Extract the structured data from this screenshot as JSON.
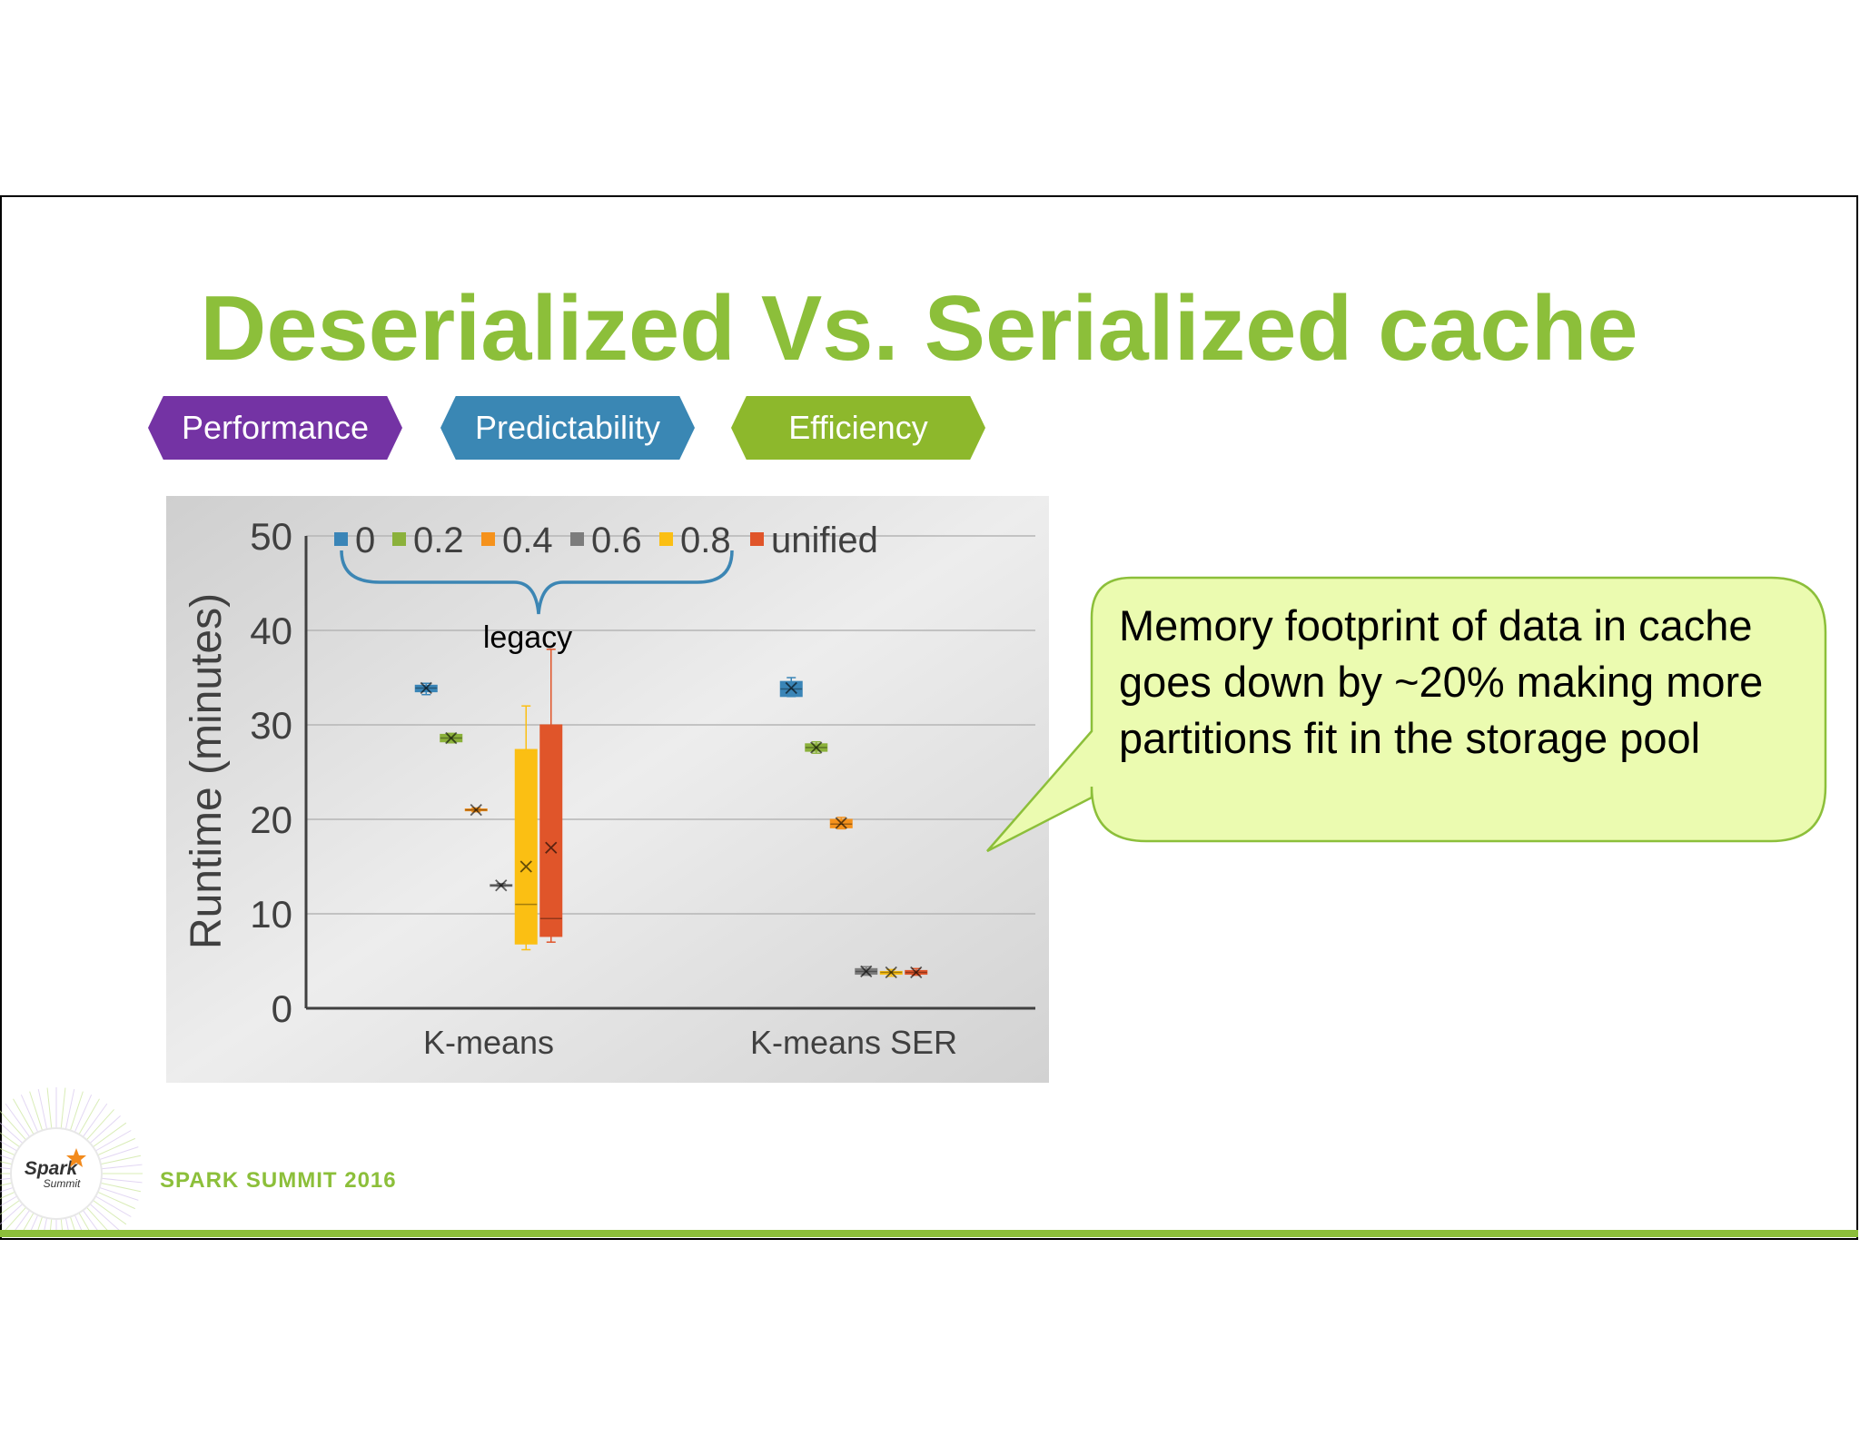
{
  "slide": {
    "title": "Deserialized Vs. Serialized cache",
    "tags": [
      {
        "label": "Performance",
        "color": "#7433a4"
      },
      {
        "label": "Predictability",
        "color": "#3a87b4"
      },
      {
        "label": "Efficiency",
        "color": "#8db82c"
      }
    ],
    "callout": "Memory footprint of data in cache goes down by ~20% making more partitions fit in the storage pool",
    "footer": "SPARK SUMMIT 2016",
    "logo_text": {
      "line1": "Spark",
      "line2": "Summit"
    }
  },
  "chart_data": {
    "type": "box",
    "ylabel": "Runtime (minutes)",
    "ylim": [
      0,
      50
    ],
    "yticks": [
      "0",
      "10",
      "20",
      "30",
      "40",
      "50"
    ],
    "categories": [
      "K-means",
      "K-means SER"
    ],
    "legend_annotation": "legacy",
    "series": [
      {
        "name": "0",
        "color": "#3a85b7",
        "boxes": [
          {
            "min": 33.2,
            "q1": 33.5,
            "median": 33.9,
            "q3": 34.2,
            "max": 34.4,
            "mean": 33.9
          },
          {
            "min": 33.0,
            "q1": 33.0,
            "median": 33.8,
            "q3": 34.6,
            "max": 35.0,
            "mean": 33.9
          }
        ]
      },
      {
        "name": "0.2",
        "color": "#8bb13b",
        "boxes": [
          {
            "min": 28.1,
            "q1": 28.2,
            "median": 28.6,
            "q3": 29.0,
            "max": 29.1,
            "mean": 28.6
          },
          {
            "min": 27.0,
            "q1": 27.2,
            "median": 27.6,
            "q3": 28.0,
            "max": 28.2,
            "mean": 27.6
          }
        ]
      },
      {
        "name": "0.4",
        "color": "#f5921c",
        "boxes": [
          {
            "min": 20.8,
            "q1": 20.9,
            "median": 21.0,
            "q3": 21.1,
            "max": 21.2,
            "mean": 21.0
          },
          {
            "min": 19.0,
            "q1": 19.1,
            "median": 19.5,
            "q3": 20.0,
            "max": 20.2,
            "mean": 19.6
          }
        ]
      },
      {
        "name": "0.6",
        "color": "#7c7c7c",
        "boxes": [
          {
            "min": 12.9,
            "q1": 13.0,
            "median": 13.0,
            "q3": 13.1,
            "max": 13.2,
            "mean": 13.0
          },
          {
            "min": 3.5,
            "q1": 3.6,
            "median": 3.9,
            "q3": 4.2,
            "max": 4.4,
            "mean": 3.9
          }
        ]
      },
      {
        "name": "0.8",
        "color": "#fbbf13",
        "boxes": [
          {
            "min": 6.2,
            "q1": 6.8,
            "median": 11.0,
            "q3": 27.4,
            "max": 32.0,
            "mean": 15.0
          },
          {
            "min": 3.4,
            "q1": 3.6,
            "median": 3.8,
            "q3": 3.9,
            "max": 4.1,
            "mean": 3.8
          }
        ]
      },
      {
        "name": "unified",
        "color": "#e0552a",
        "boxes": [
          {
            "min": 7.0,
            "q1": 7.6,
            "median": 9.5,
            "q3": 30.0,
            "max": 38.0,
            "mean": 17.0
          },
          {
            "min": 3.5,
            "q1": 3.6,
            "median": 3.8,
            "q3": 4.0,
            "max": 4.2,
            "mean": 3.8
          }
        ]
      }
    ],
    "grid": true,
    "legend_position": "top"
  }
}
